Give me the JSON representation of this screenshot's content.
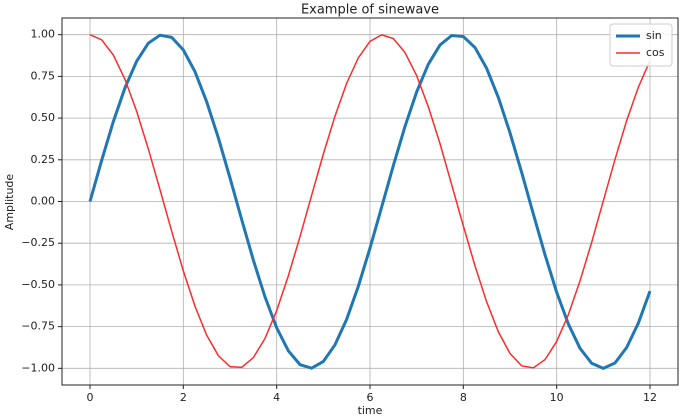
{
  "chart_data": {
    "type": "line",
    "title": "Example of sinewave",
    "x_label": "time",
    "y_label": "Amplitude",
    "x": [
      0,
      0.25,
      0.5,
      0.75,
      1,
      1.25,
      1.5,
      1.75,
      2,
      2.25,
      2.5,
      2.75,
      3,
      3.25,
      3.5,
      3.75,
      4,
      4.25,
      4.5,
      4.75,
      5,
      5.25,
      5.5,
      5.75,
      6,
      6.25,
      6.5,
      6.75,
      7,
      7.25,
      7.5,
      7.75,
      8,
      8.25,
      8.5,
      8.75,
      9,
      9.25,
      9.5,
      9.75,
      10,
      10.25,
      10.5,
      10.75,
      11,
      11.25,
      11.5,
      11.75,
      12
    ],
    "series": [
      {
        "name": "sin",
        "color": "#1f77b4",
        "values": [
          0,
          0.247,
          0.479,
          0.682,
          0.841,
          0.949,
          0.997,
          0.984,
          0.909,
          0.778,
          0.598,
          0.382,
          0.141,
          -0.108,
          -0.351,
          -0.572,
          -0.757,
          -0.895,
          -0.978,
          -0.999,
          -0.959,
          -0.859,
          -0.706,
          -0.508,
          -0.279,
          -0.033,
          0.215,
          0.45,
          0.657,
          0.823,
          0.938,
          0.995,
          0.989,
          0.923,
          0.798,
          0.624,
          0.412,
          0.174,
          -0.075,
          -0.319,
          -0.544,
          -0.734,
          -0.88,
          -0.97,
          -1,
          -0.968,
          -0.875,
          -0.729,
          -0.537
        ]
      },
      {
        "name": "cos",
        "color": "#ff2a2a",
        "values": [
          1,
          0.969,
          0.878,
          0.732,
          0.54,
          0.315,
          0.071,
          -0.178,
          -0.416,
          -0.628,
          -0.801,
          -0.924,
          -0.99,
          -0.994,
          -0.936,
          -0.821,
          -0.654,
          -0.446,
          -0.211,
          0.038,
          0.284,
          0.512,
          0.709,
          0.861,
          0.96,
          0.999,
          0.977,
          0.893,
          0.754,
          0.568,
          0.347,
          0.101,
          -0.146,
          -0.386,
          -0.602,
          -0.781,
          -0.911,
          -0.985,
          -0.997,
          -0.948,
          -0.839,
          -0.679,
          -0.476,
          -0.245,
          0.004,
          0.252,
          0.485,
          0.685,
          0.844
        ]
      }
    ],
    "xlim": [
      -0.6,
      12.6
    ],
    "ylim": [
      -1.1,
      1.1
    ],
    "xticks": [
      0,
      2,
      4,
      6,
      8,
      10,
      12
    ],
    "yticks": [
      {
        "value": 1,
        "label": "1.00"
      },
      {
        "value": 0.75,
        "label": "0.75"
      },
      {
        "value": 0.5,
        "label": "0.50"
      },
      {
        "value": 0.25,
        "label": "0.25"
      },
      {
        "value": 0,
        "label": "0.00"
      },
      {
        "value": -0.25,
        "label": "−0.25"
      },
      {
        "value": -0.5,
        "label": "−0.50"
      },
      {
        "value": -0.75,
        "label": "−0.75"
      },
      {
        "value": -1,
        "label": "−1.00"
      }
    ],
    "grid": true,
    "legend": "upper right"
  }
}
